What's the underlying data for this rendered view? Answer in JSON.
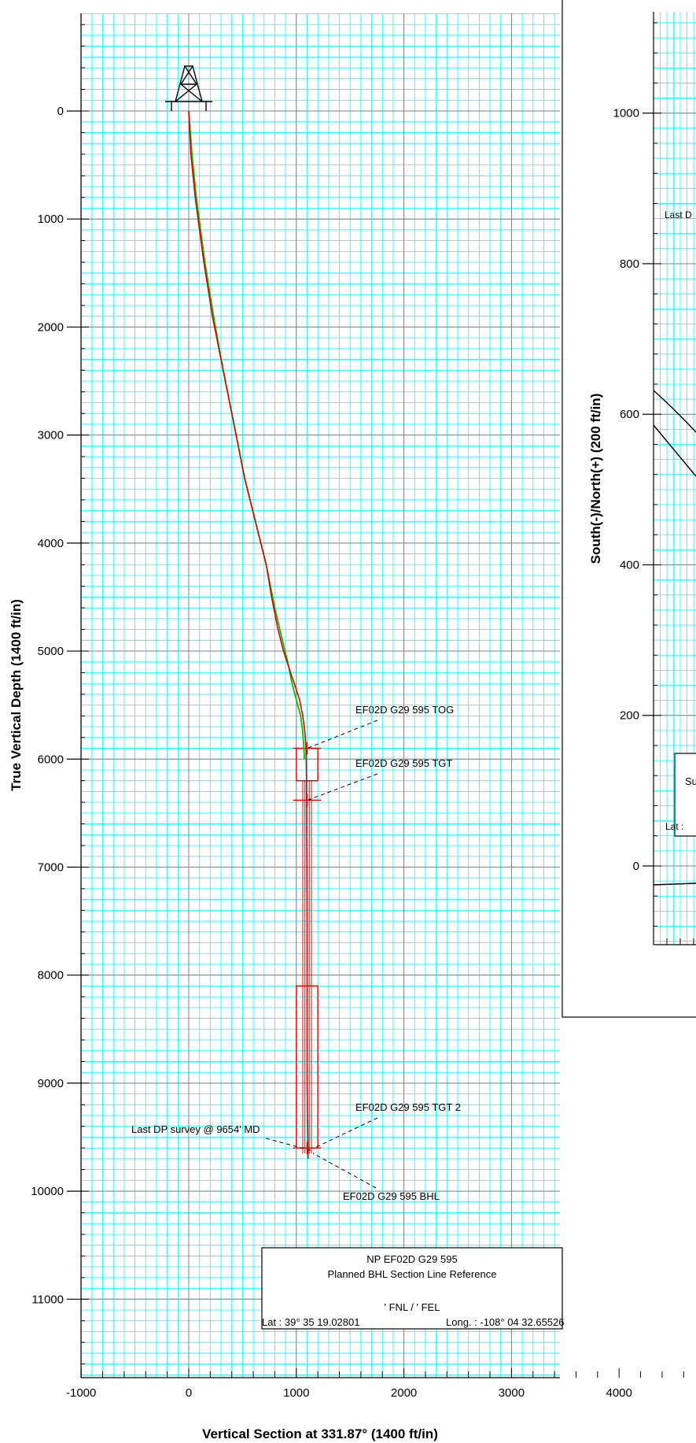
{
  "chart_data": [
    {
      "type": "line",
      "xlabel": "Vertical Section at 331.87° (1400 ft/in)",
      "ylabel": "True Vertical Depth (1400 ft/in)",
      "xlim": [
        -1000,
        4700
      ],
      "ylim": [
        -880,
        11780
      ],
      "y_inverted": true,
      "grid": true,
      "x_ticks": [
        -1000,
        0,
        1000,
        2000,
        3000,
        4000
      ],
      "y_ticks": [
        0,
        1000,
        2000,
        3000,
        4000,
        5000,
        6000,
        7000,
        8000,
        9000,
        10000,
        11000
      ],
      "colors": {
        "grid_minor": "#00ffff",
        "grid_major": "#808080",
        "plan": "#00c000",
        "actual": "#e00000"
      },
      "series": [
        {
          "key": "plan",
          "x": [
            0,
            30,
            70,
            150,
            230,
            320,
            420,
            520,
            620,
            720,
            800,
            870,
            920,
            960,
            1000,
            1040,
            1060,
            1070,
            1075
          ],
          "y": [
            0,
            400,
            800,
            1400,
            1900,
            2400,
            2900,
            3400,
            3800,
            4200,
            4600,
            4900,
            5100,
            5300,
            5450,
            5600,
            5750,
            5900,
            6000
          ]
        },
        {
          "key": "actual",
          "x": [
            0,
            20,
            60,
            140,
            220,
            320,
            420,
            520,
            620,
            720,
            770,
            830,
            880,
            930,
            980,
            1030,
            1060,
            1080,
            1090,
            1095,
            1100,
            1100,
            1110
          ],
          "y": [
            0,
            400,
            800,
            1400,
            1900,
            2400,
            2900,
            3400,
            3800,
            4200,
            4500,
            4800,
            5000,
            5150,
            5300,
            5450,
            5600,
            5750,
            5900,
            6200,
            7500,
            9000,
            9700
          ]
        }
      ],
      "targets": [
        {
          "x_range": [
            1000,
            1200
          ],
          "y_range": [
            5900,
            6200
          ]
        },
        {
          "x_range": [
            1000,
            1200
          ],
          "y_range": [
            8100,
            9600
          ]
        }
      ],
      "annotations": [
        {
          "text": "EF02D G29 595 TOG",
          "x": 1100,
          "y": 5900
        },
        {
          "text": "EF02D G29 595 TGT",
          "x": 1100,
          "y": 6380
        },
        {
          "text": "EF02D G29 595 TGT 2",
          "x": 1150,
          "y": 9580
        },
        {
          "text": "Last DP survey @ 9654' MD",
          "x": 1150,
          "y": 9600
        },
        {
          "text": "EF02D G29 595 BHL",
          "x": 1150,
          "y": 9600
        }
      ],
      "legend_box": {
        "lines": [
          "NP EF02D G29 595",
          "Planned BHL Section Line Reference",
          "",
          "' FNL / ' FEL"
        ],
        "lat": "Lat :  39° 35 19.02801",
        "long": "Long. :  -108° 04 32.65526"
      }
    },
    {
      "type": "line",
      "ylabel": "South(-)/North(+) (200 ft/in)",
      "ylim": [
        -100,
        1130
      ],
      "y_ticks": [
        0,
        200,
        400,
        600,
        800,
        1000
      ],
      "grid": true,
      "partial_texts": [
        "Last D",
        "Su",
        "Lat :"
      ]
    }
  ]
}
